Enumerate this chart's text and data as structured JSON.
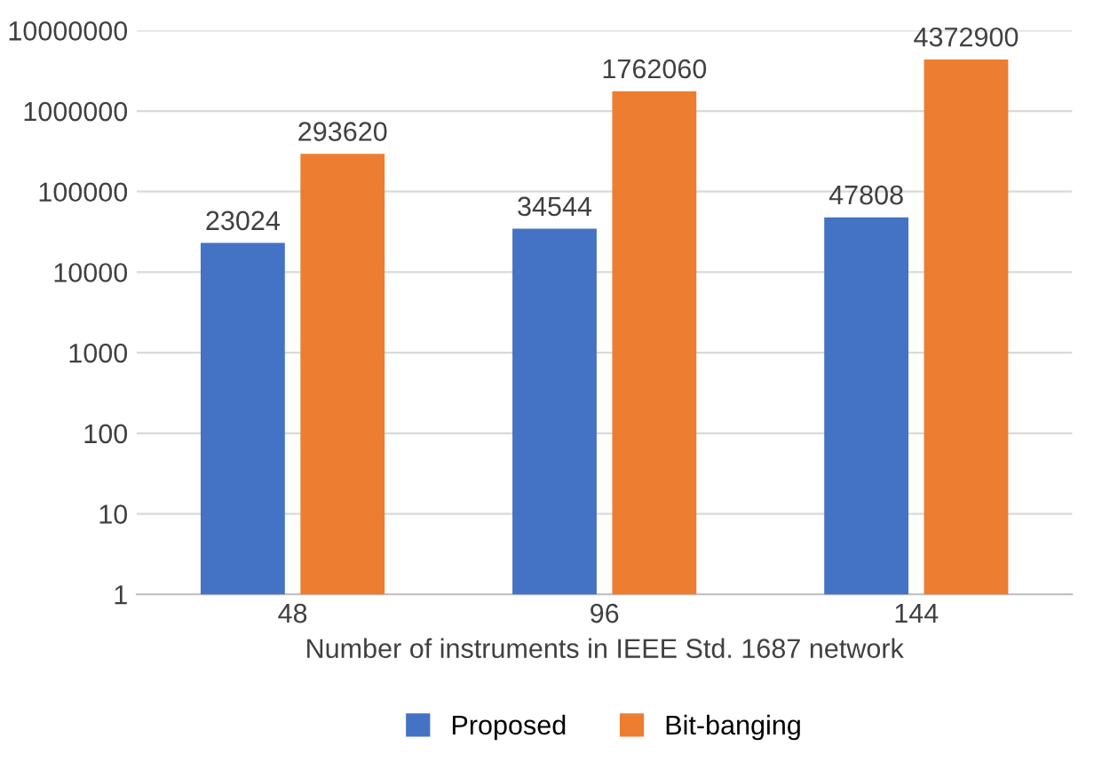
{
  "chart_data": {
    "type": "bar",
    "xlabel": "Number of instruments in IEEE Std. 1687 network",
    "categories": [
      "48",
      "96",
      "144"
    ],
    "series": [
      {
        "name": "Proposed",
        "color": "#4472c4",
        "values": [
          23024,
          34544,
          47808
        ]
      },
      {
        "name": "Bit-banging",
        "color": "#ed7d31",
        "values": [
          293620,
          1762060,
          4372900
        ]
      }
    ],
    "log": "y",
    "ylim": [
      1,
      10000000
    ],
    "yticks": [
      1,
      10,
      100,
      1000,
      10000,
      100000,
      1000000,
      10000000
    ],
    "grid": "y",
    "legend": "bottom",
    "data_labels": true
  }
}
